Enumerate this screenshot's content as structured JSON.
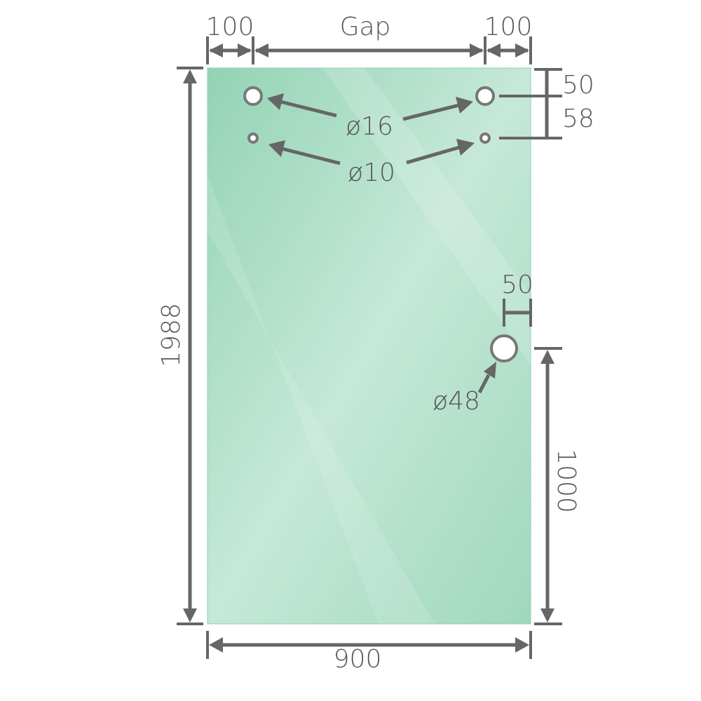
{
  "diagram": {
    "labels": {
      "left_offset": "100",
      "gap": "Gap",
      "right_offset": "100",
      "top_to_hole": "50",
      "hole_spacing": "58",
      "hole_16": "ø16",
      "hole_10": "ø10",
      "edge_to_big_hole": "50",
      "big_hole": "ø48",
      "height": "1988",
      "big_hole_height": "1000",
      "width": "900"
    },
    "colors": {
      "glass": "#9fd8bd",
      "glass_light": "#c8eadb",
      "dimension": "#666666"
    }
  }
}
